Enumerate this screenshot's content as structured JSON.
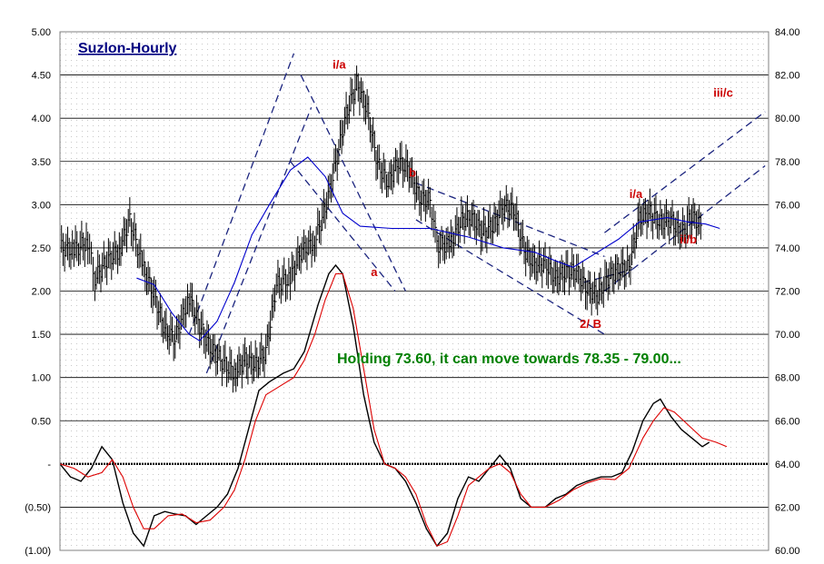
{
  "chart_data": {
    "type": "line",
    "title": "Suzlon-Hourly",
    "annotation": "Holding 73.60, it can move towards 78.35 - 79.00...",
    "grid": true,
    "colors": {
      "price": "#000000",
      "moving_average": "#0000cc",
      "oscillator": "#000000",
      "signal": "#dd0000",
      "trendlines": "#1a237e",
      "title": "#000080",
      "annotation": "#008000",
      "wave_labels": "#cc0000"
    },
    "left_axis": {
      "ylim": [
        -1.0,
        5.0
      ],
      "ticks": [
        "5.00",
        "4.50",
        "4.00",
        "3.50",
        "3.00",
        "2.50",
        "2.00",
        "1.50",
        "1.00",
        "0.50",
        "-",
        "(0.50)",
        "(1.00)"
      ]
    },
    "right_axis": {
      "ylim": [
        60.0,
        84.0
      ],
      "ticks": [
        "84.00",
        "82.00",
        "80.00",
        "78.00",
        "76.00",
        "74.00",
        "72.00",
        "70.00",
        "68.00",
        "66.00",
        "64.00",
        "62.00",
        "60.00"
      ]
    },
    "series": [
      {
        "role": "price",
        "axis": "right",
        "points": [
          [
            0,
            74.0
          ],
          [
            4,
            73.9
          ],
          [
            8,
            74.3
          ],
          [
            10,
            72.6
          ],
          [
            13,
            73.3
          ],
          [
            17,
            73.9
          ],
          [
            20,
            75.3
          ],
          [
            24,
            73.0
          ],
          [
            27,
            71.8
          ],
          [
            30,
            70.2
          ],
          [
            33,
            69.8
          ],
          [
            37,
            71.7
          ],
          [
            40,
            70.4
          ],
          [
            43,
            69.4
          ],
          [
            46,
            68.8
          ],
          [
            50,
            68.2
          ],
          [
            53,
            68.8
          ],
          [
            56,
            68.6
          ],
          [
            59,
            69.2
          ],
          [
            62,
            72.3
          ],
          [
            66,
            72.6
          ],
          [
            69,
            73.8
          ],
          [
            73,
            74.3
          ],
          [
            76,
            75.8
          ],
          [
            79,
            77.9
          ],
          [
            82,
            80.2
          ],
          [
            85,
            81.6
          ],
          [
            88,
            80.4
          ],
          [
            91,
            77.9
          ],
          [
            94,
            77.0
          ],
          [
            97,
            78.0
          ],
          [
            100,
            77.6
          ],
          [
            103,
            76.3
          ],
          [
            106,
            76.2
          ],
          [
            108,
            74.1
          ],
          [
            112,
            74.2
          ],
          [
            115,
            75.3
          ],
          [
            118,
            75.4
          ],
          [
            121,
            74.7
          ],
          [
            124,
            75.0
          ],
          [
            127,
            75.9
          ],
          [
            130,
            75.8
          ],
          [
            133,
            73.9
          ],
          [
            136,
            73.2
          ],
          [
            139,
            73.3
          ],
          [
            142,
            72.6
          ],
          [
            145,
            72.9
          ],
          [
            148,
            72.9
          ],
          [
            151,
            72.1
          ],
          [
            154,
            71.8
          ],
          [
            157,
            72.6
          ],
          [
            160,
            73.0
          ],
          [
            163,
            73.1
          ],
          [
            166,
            75.4
          ],
          [
            169,
            75.6
          ],
          [
            172,
            75.2
          ],
          [
            175,
            75.3
          ],
          [
            178,
            74.6
          ],
          [
            181,
            75.5
          ],
          [
            184,
            74.9
          ]
        ]
      },
      {
        "role": "moving_average",
        "axis": "right",
        "points": [
          [
            22,
            72.6
          ],
          [
            27,
            72.3
          ],
          [
            32,
            71.0
          ],
          [
            37,
            70.0
          ],
          [
            40,
            69.7
          ],
          [
            45,
            70.6
          ],
          [
            50,
            72.4
          ],
          [
            55,
            74.6
          ],
          [
            60,
            76.0
          ],
          [
            66,
            77.6
          ],
          [
            71,
            78.2
          ],
          [
            76,
            77.3
          ],
          [
            81,
            75.6
          ],
          [
            86,
            75.0
          ],
          [
            95,
            74.9
          ],
          [
            106,
            74.9
          ],
          [
            117,
            74.5
          ],
          [
            127,
            74.0
          ],
          [
            136,
            73.8
          ],
          [
            142,
            73.4
          ],
          [
            147,
            73.1
          ],
          [
            154,
            73.8
          ],
          [
            160,
            74.4
          ],
          [
            166,
            75.2
          ],
          [
            174,
            75.4
          ],
          [
            180,
            75.2
          ],
          [
            185,
            75.1
          ],
          [
            189,
            74.9
          ]
        ]
      },
      {
        "role": "oscillator",
        "axis": "left",
        "points": [
          [
            0,
            0.0
          ],
          [
            3,
            -0.15
          ],
          [
            6,
            -0.2
          ],
          [
            9,
            -0.05
          ],
          [
            12,
            0.2
          ],
          [
            15,
            0.05
          ],
          [
            18,
            -0.45
          ],
          [
            21,
            -0.8
          ],
          [
            24,
            -0.95
          ],
          [
            27,
            -0.6
          ],
          [
            30,
            -0.55
          ],
          [
            33,
            -0.58
          ],
          [
            36,
            -0.6
          ],
          [
            39,
            -0.7
          ],
          [
            42,
            -0.6
          ],
          [
            45,
            -0.5
          ],
          [
            48,
            -0.35
          ],
          [
            51,
            -0.05
          ],
          [
            54,
            0.4
          ],
          [
            57,
            0.85
          ],
          [
            60,
            0.95
          ],
          [
            64,
            1.05
          ],
          [
            67,
            1.1
          ],
          [
            70,
            1.3
          ],
          [
            74,
            1.85
          ],
          [
            77,
            2.2
          ],
          [
            79,
            2.3
          ],
          [
            81,
            2.2
          ],
          [
            84,
            1.6
          ],
          [
            87,
            0.8
          ],
          [
            90,
            0.25
          ],
          [
            93,
            0.0
          ],
          [
            96,
            -0.05
          ],
          [
            99,
            -0.2
          ],
          [
            102,
            -0.45
          ],
          [
            105,
            -0.75
          ],
          [
            108,
            -0.95
          ],
          [
            111,
            -0.8
          ],
          [
            114,
            -0.4
          ],
          [
            117,
            -0.15
          ],
          [
            120,
            -0.2
          ],
          [
            123,
            -0.05
          ],
          [
            126,
            0.1
          ],
          [
            129,
            -0.05
          ],
          [
            132,
            -0.4
          ],
          [
            135,
            -0.5
          ],
          [
            139,
            -0.5
          ],
          [
            142,
            -0.4
          ],
          [
            145,
            -0.35
          ],
          [
            148,
            -0.25
          ],
          [
            151,
            -0.2
          ],
          [
            155,
            -0.15
          ],
          [
            158,
            -0.15
          ],
          [
            161,
            -0.1
          ],
          [
            164,
            0.15
          ],
          [
            167,
            0.5
          ],
          [
            170,
            0.7
          ],
          [
            172,
            0.75
          ],
          [
            175,
            0.55
          ],
          [
            178,
            0.4
          ],
          [
            181,
            0.3
          ],
          [
            184,
            0.2
          ],
          [
            186,
            0.25
          ]
        ]
      },
      {
        "role": "signal",
        "axis": "left",
        "points": [
          [
            0,
            0.0
          ],
          [
            4,
            -0.05
          ],
          [
            8,
            -0.15
          ],
          [
            12,
            -0.1
          ],
          [
            15,
            0.05
          ],
          [
            18,
            -0.15
          ],
          [
            21,
            -0.5
          ],
          [
            24,
            -0.75
          ],
          [
            27,
            -0.75
          ],
          [
            31,
            -0.6
          ],
          [
            35,
            -0.58
          ],
          [
            39,
            -0.68
          ],
          [
            43,
            -0.65
          ],
          [
            47,
            -0.5
          ],
          [
            50,
            -0.3
          ],
          [
            53,
            0.05
          ],
          [
            56,
            0.5
          ],
          [
            59,
            0.8
          ],
          [
            63,
            0.9
          ],
          [
            67,
            1.0
          ],
          [
            70,
            1.2
          ],
          [
            73,
            1.5
          ],
          [
            76,
            1.9
          ],
          [
            79,
            2.2
          ],
          [
            81,
            2.2
          ],
          [
            84,
            1.8
          ],
          [
            87,
            1.1
          ],
          [
            90,
            0.4
          ],
          [
            93,
            0.0
          ],
          [
            96,
            -0.05
          ],
          [
            99,
            -0.15
          ],
          [
            102,
            -0.35
          ],
          [
            105,
            -0.7
          ],
          [
            108,
            -0.95
          ],
          [
            111,
            -0.9
          ],
          [
            114,
            -0.6
          ],
          [
            117,
            -0.25
          ],
          [
            120,
            -0.15
          ],
          [
            123,
            -0.05
          ],
          [
            126,
            0.0
          ],
          [
            129,
            -0.1
          ],
          [
            132,
            -0.35
          ],
          [
            135,
            -0.5
          ],
          [
            139,
            -0.5
          ],
          [
            143,
            -0.42
          ],
          [
            147,
            -0.3
          ],
          [
            151,
            -0.22
          ],
          [
            155,
            -0.17
          ],
          [
            159,
            -0.18
          ],
          [
            163,
            -0.05
          ],
          [
            167,
            0.3
          ],
          [
            170,
            0.5
          ],
          [
            173,
            0.65
          ],
          [
            176,
            0.6
          ],
          [
            180,
            0.45
          ],
          [
            184,
            0.3
          ],
          [
            188,
            0.25
          ],
          [
            191,
            0.2
          ]
        ]
      }
    ],
    "trendlines": [
      {
        "role": "dashed",
        "axis": "right",
        "points": [
          [
            37,
            70.0
          ],
          [
            67,
            83.0
          ]
        ]
      },
      {
        "role": "dashed",
        "axis": "right",
        "points": [
          [
            42,
            68.2
          ],
          [
            72,
            80.5
          ]
        ]
      },
      {
        "role": "dashed",
        "axis": "right",
        "points": [
          [
            66,
            78.0
          ],
          [
            96,
            72.0
          ]
        ]
      },
      {
        "role": "dashed",
        "axis": "right",
        "points": [
          [
            69,
            82.0
          ],
          [
            99,
            72.0
          ]
        ]
      },
      {
        "role": "dashed",
        "axis": "right",
        "points": [
          [
            102,
            77.0
          ],
          [
            156,
            73.6
          ]
        ]
      },
      {
        "role": "dashed",
        "axis": "right",
        "points": [
          [
            102,
            75.3
          ],
          [
            156,
            70.0
          ]
        ]
      },
      {
        "role": "dashed",
        "axis": "right",
        "points": [
          [
            156,
            72.0
          ],
          [
            202,
            77.8
          ]
        ]
      },
      {
        "role": "dashed",
        "axis": "right",
        "points": [
          [
            156,
            74.7
          ],
          [
            202,
            80.3
          ]
        ]
      },
      {
        "role": "dashed",
        "axis": "right",
        "points": [
          [
            150,
            72.4
          ],
          [
            164,
            73.0
          ]
        ]
      }
    ],
    "wave_labels": [
      {
        "text": "i/a",
        "x": 80,
        "y": 82.3
      },
      {
        "text": "a",
        "x": 90,
        "y": 72.7
      },
      {
        "text": "b",
        "x": 101,
        "y": 77.3
      },
      {
        "text": "2/ B",
        "x": 152,
        "y": 70.3
      },
      {
        "text": "i/a",
        "x": 165,
        "y": 76.3
      },
      {
        "text": "ii/b",
        "x": 180,
        "y": 74.2
      },
      {
        "text": "iii/c",
        "x": 190,
        "y": 81.0
      }
    ]
  }
}
